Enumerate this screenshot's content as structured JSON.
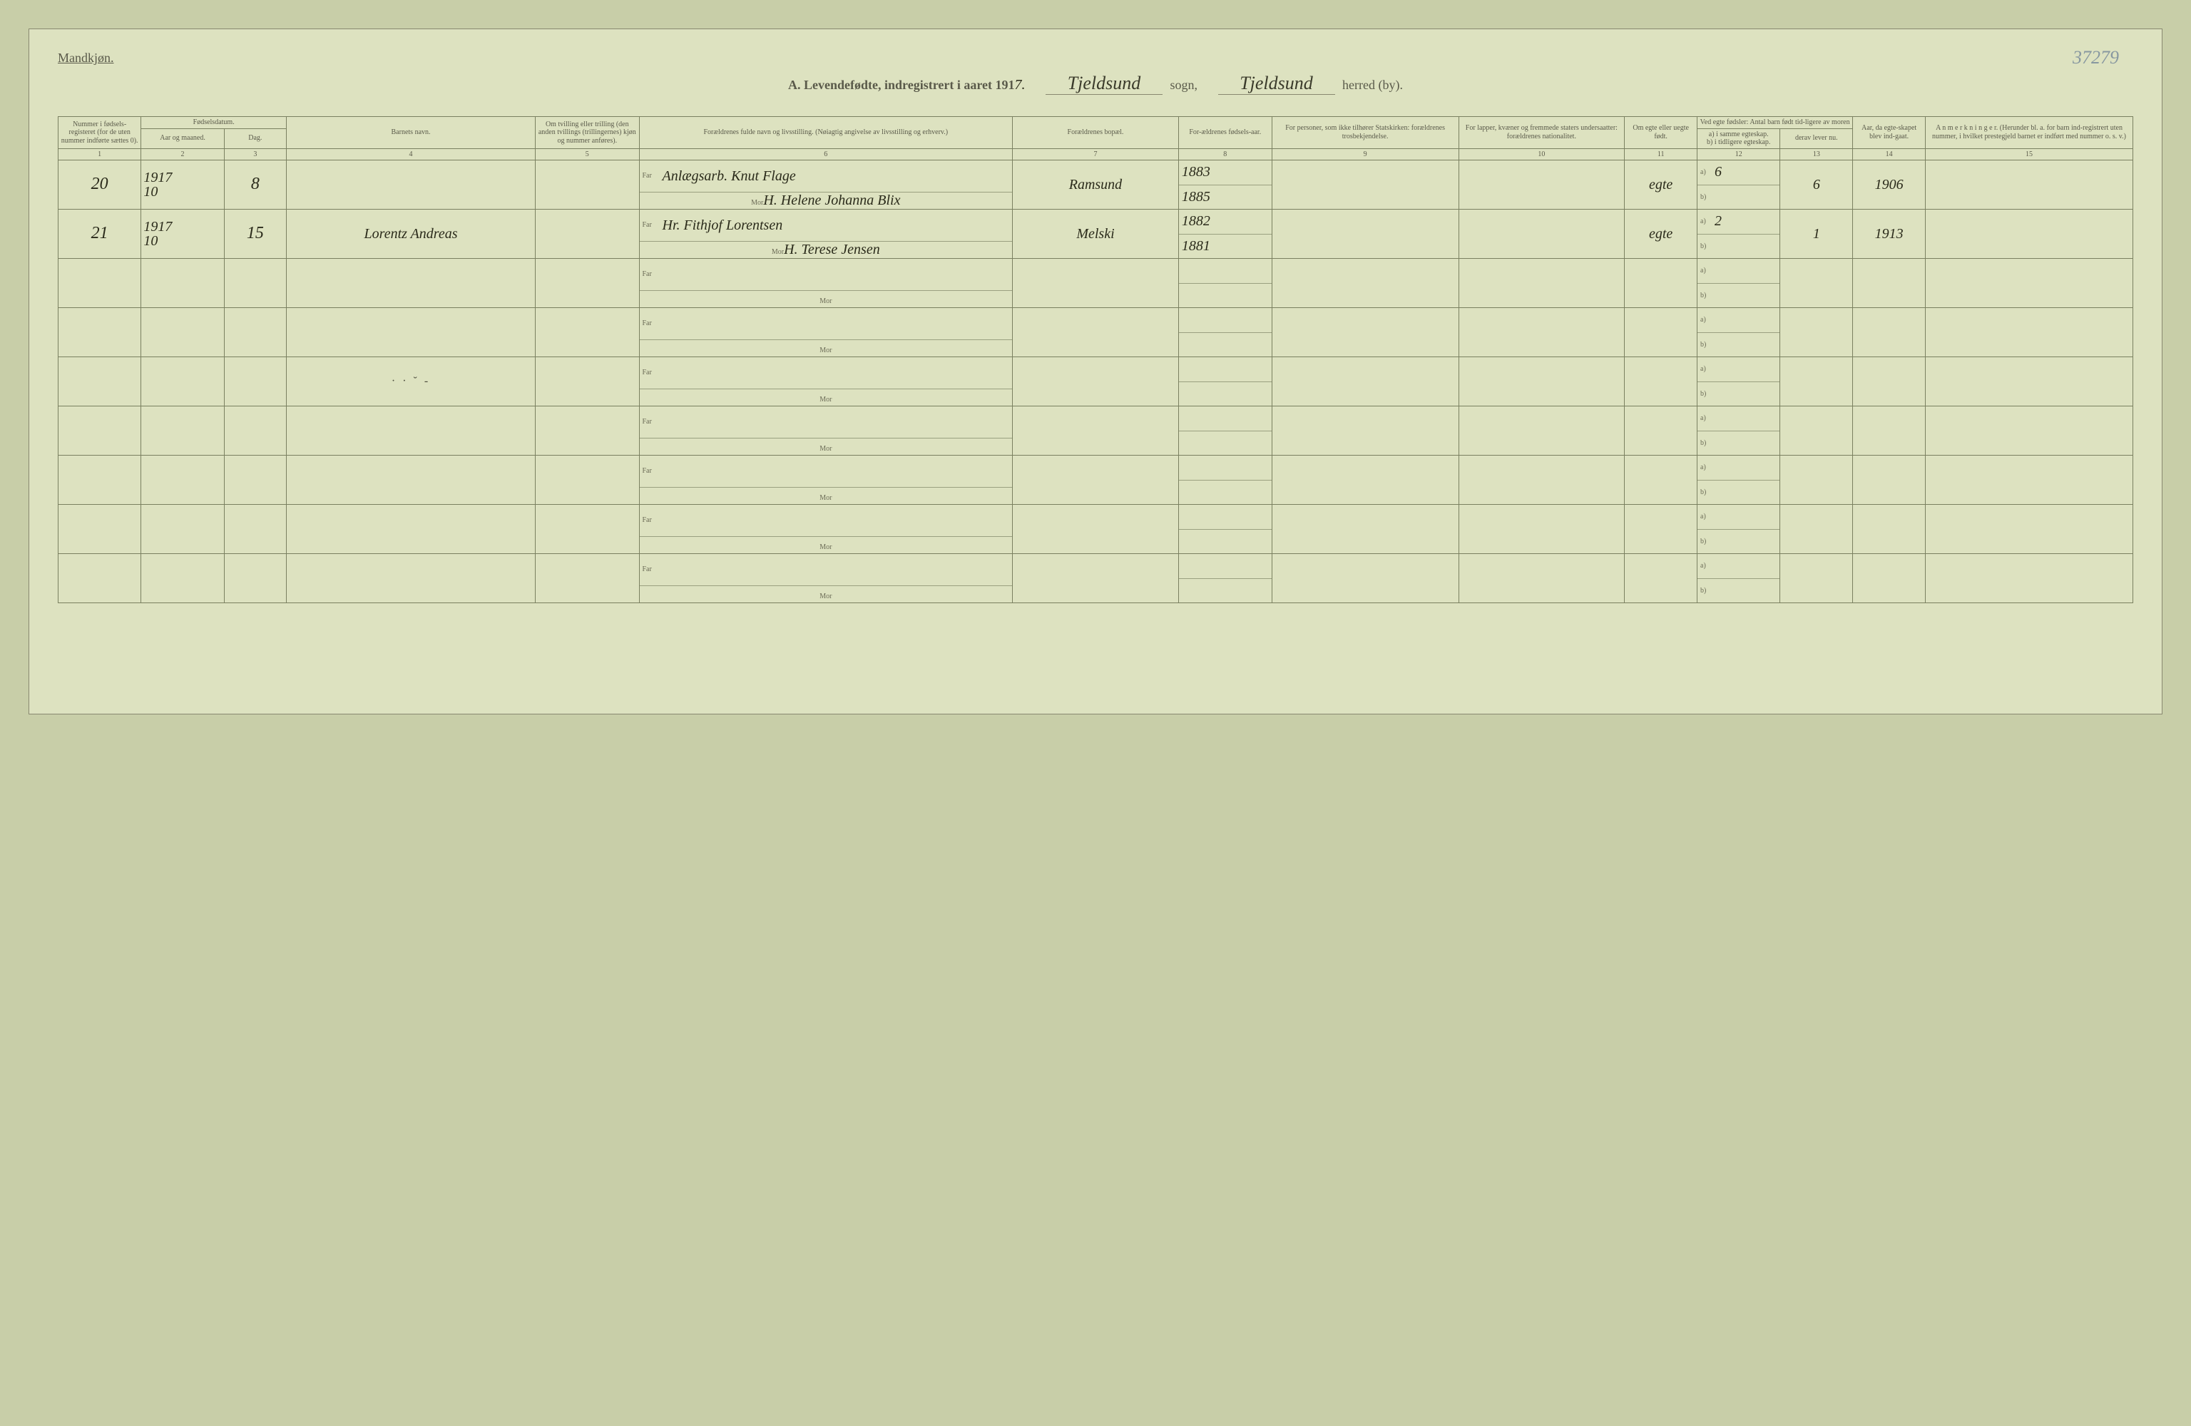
{
  "labels": {
    "gender": "Mandkjøn.",
    "section_letter": "A.",
    "title_prefix": "Levendefødte, indregistrert i aaret 191",
    "year_suffix": "7.",
    "sogn": "sogn,",
    "herred": "herred (by).",
    "pencil_topright": "37279"
  },
  "blanks": {
    "sogn_value": "Tjeldsund",
    "herred_value": "Tjeldsund"
  },
  "columns": {
    "c1": "Nummer i fødsels-registeret (for de uten nummer indførte sættes 0).",
    "c2_group": "Fødselsdatum.",
    "c2a": "Aar og maaned.",
    "c2b": "Dag.",
    "c4": "Barnets navn.",
    "c5": "Om tvilling eller trilling (den anden tvillings (trillingernes) kjøn og nummer anføres).",
    "c6": "Forældrenes fulde navn og livsstilling. (Nøiagtig angivelse av livsstilling og erhverv.)",
    "c7": "Forældrenes bopæl.",
    "c8": "For-ældrenes fødsels-aar.",
    "c9": "For personer, som ikke tilhører Statskirken: forældrenes trosbekjendelse.",
    "c10": "For lapper, kvæner og fremmede staters undersaatter: forældrenes nationalitet.",
    "c11": "Om egte eller uegte født.",
    "c12_group": "Ved egte fødsler: Antal barn født tid-ligere av moren",
    "c12a": "a) i samme egteskap.",
    "c12b": "b) i tidligere egteskap.",
    "c13": "derav lever nu.",
    "c14": "Aar, da egte-skapet blev ind-gaat.",
    "c15": "A n m e r k n i n g e r. (Herunder bl. a. for barn ind-registrert uten nummer, i hvilket prestegjeld barnet er indført med nummer o. s. v.)"
  },
  "colnums": [
    "1",
    "2",
    "3",
    "4",
    "5",
    "6",
    "7",
    "8",
    "9",
    "10",
    "11",
    "12",
    "13",
    "14",
    "15"
  ],
  "role": {
    "far": "Far",
    "mor": "Mor",
    "a": "a)",
    "b": "b)"
  },
  "rows": [
    {
      "num": "20",
      "year": "1917",
      "month": "10",
      "day": "8",
      "name": "",
      "far": "Anlægsarb. Knut Flage",
      "mor": "H. Helene Johanna Blix",
      "bopael": "Ramsund",
      "fy_far": "1883",
      "fy_mor": "1885",
      "egte": "egte",
      "a_val": "6",
      "b_val": "",
      "lever": "6",
      "aar_egt": "1906"
    },
    {
      "num": "21",
      "year": "1917",
      "month": "10",
      "day": "15",
      "name": "Lorentz Andreas",
      "far": "Hr. Fithjof Lorentsen",
      "mor": "H. Terese Jensen",
      "bopael": "Melski",
      "fy_far": "1882",
      "fy_mor": "1881",
      "egte": "egte",
      "a_val": "2",
      "b_val": "",
      "lever": "1",
      "aar_egt": "1913"
    },
    {},
    {},
    {
      "smudge": true
    },
    {},
    {},
    {},
    {}
  ]
}
